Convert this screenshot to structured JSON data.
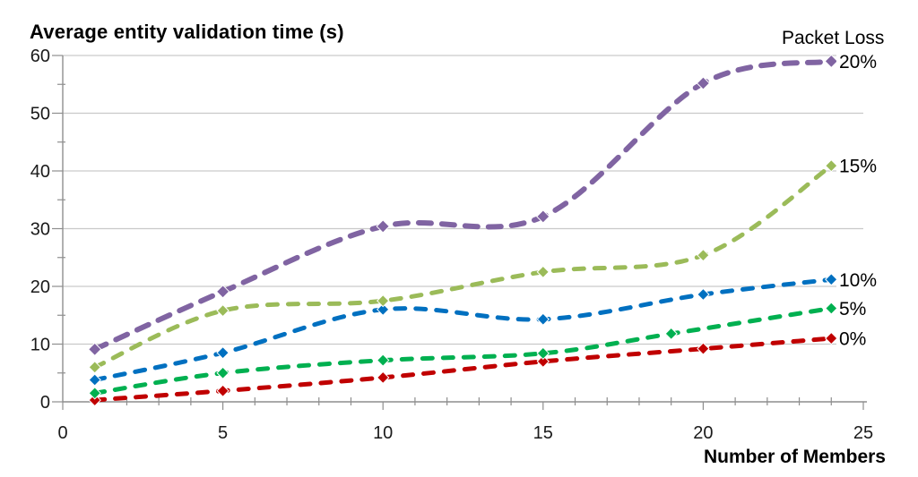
{
  "chart_data": {
    "type": "line",
    "title": "Average entity validation time (s)",
    "xlabel": "Number of Members",
    "ylabel": "Average entity validation time (s)",
    "legend_title": "Packet Loss",
    "xlim": [
      0,
      25
    ],
    "ylim": [
      0,
      60
    ],
    "x_major_ticks": [
      0,
      5,
      10,
      15,
      20,
      25
    ],
    "y_major_ticks": [
      0,
      10,
      20,
      30,
      40,
      50,
      60
    ],
    "x_minor_step": 1,
    "y_minor_step": 5,
    "grid": "horizontal",
    "grid_color": "#C9C9C9",
    "axis_color": "#8E8E8E",
    "text_color": "#1A1A1A",
    "line_style": "dashed-smooth",
    "marker": "diamond",
    "legend_position": "right-of-line-ends",
    "series": [
      {
        "name": "20%",
        "color": "#8064A2",
        "points": [
          [
            1,
            9.1
          ],
          [
            5,
            19.1
          ],
          [
            10,
            30.4
          ],
          [
            15,
            32.1
          ],
          [
            20,
            55.2
          ],
          [
            24,
            59.0
          ]
        ]
      },
      {
        "name": "15%",
        "color": "#9BBB59",
        "points": [
          [
            1,
            6.0
          ],
          [
            5,
            15.8
          ],
          [
            10,
            17.5
          ],
          [
            15,
            22.5
          ],
          [
            20,
            25.4
          ],
          [
            24,
            40.9
          ]
        ]
      },
      {
        "name": "10%",
        "color": "#0070C0",
        "points": [
          [
            1,
            3.8
          ],
          [
            5,
            8.5
          ],
          [
            10,
            16.0
          ],
          [
            15,
            14.3
          ],
          [
            20,
            18.6
          ],
          [
            24,
            21.2
          ]
        ]
      },
      {
        "name": "5%",
        "color": "#00B050",
        "points": [
          [
            1,
            1.5
          ],
          [
            5,
            5.0
          ],
          [
            10,
            7.2
          ],
          [
            15,
            8.4
          ],
          [
            19,
            11.8
          ],
          [
            24,
            16.2
          ]
        ]
      },
      {
        "name": "0%",
        "color": "#C00000",
        "points": [
          [
            1,
            0.3
          ],
          [
            5,
            1.9
          ],
          [
            10,
            4.2
          ],
          [
            15,
            7.0
          ],
          [
            20,
            9.2
          ],
          [
            24,
            11.0
          ]
        ]
      }
    ]
  }
}
